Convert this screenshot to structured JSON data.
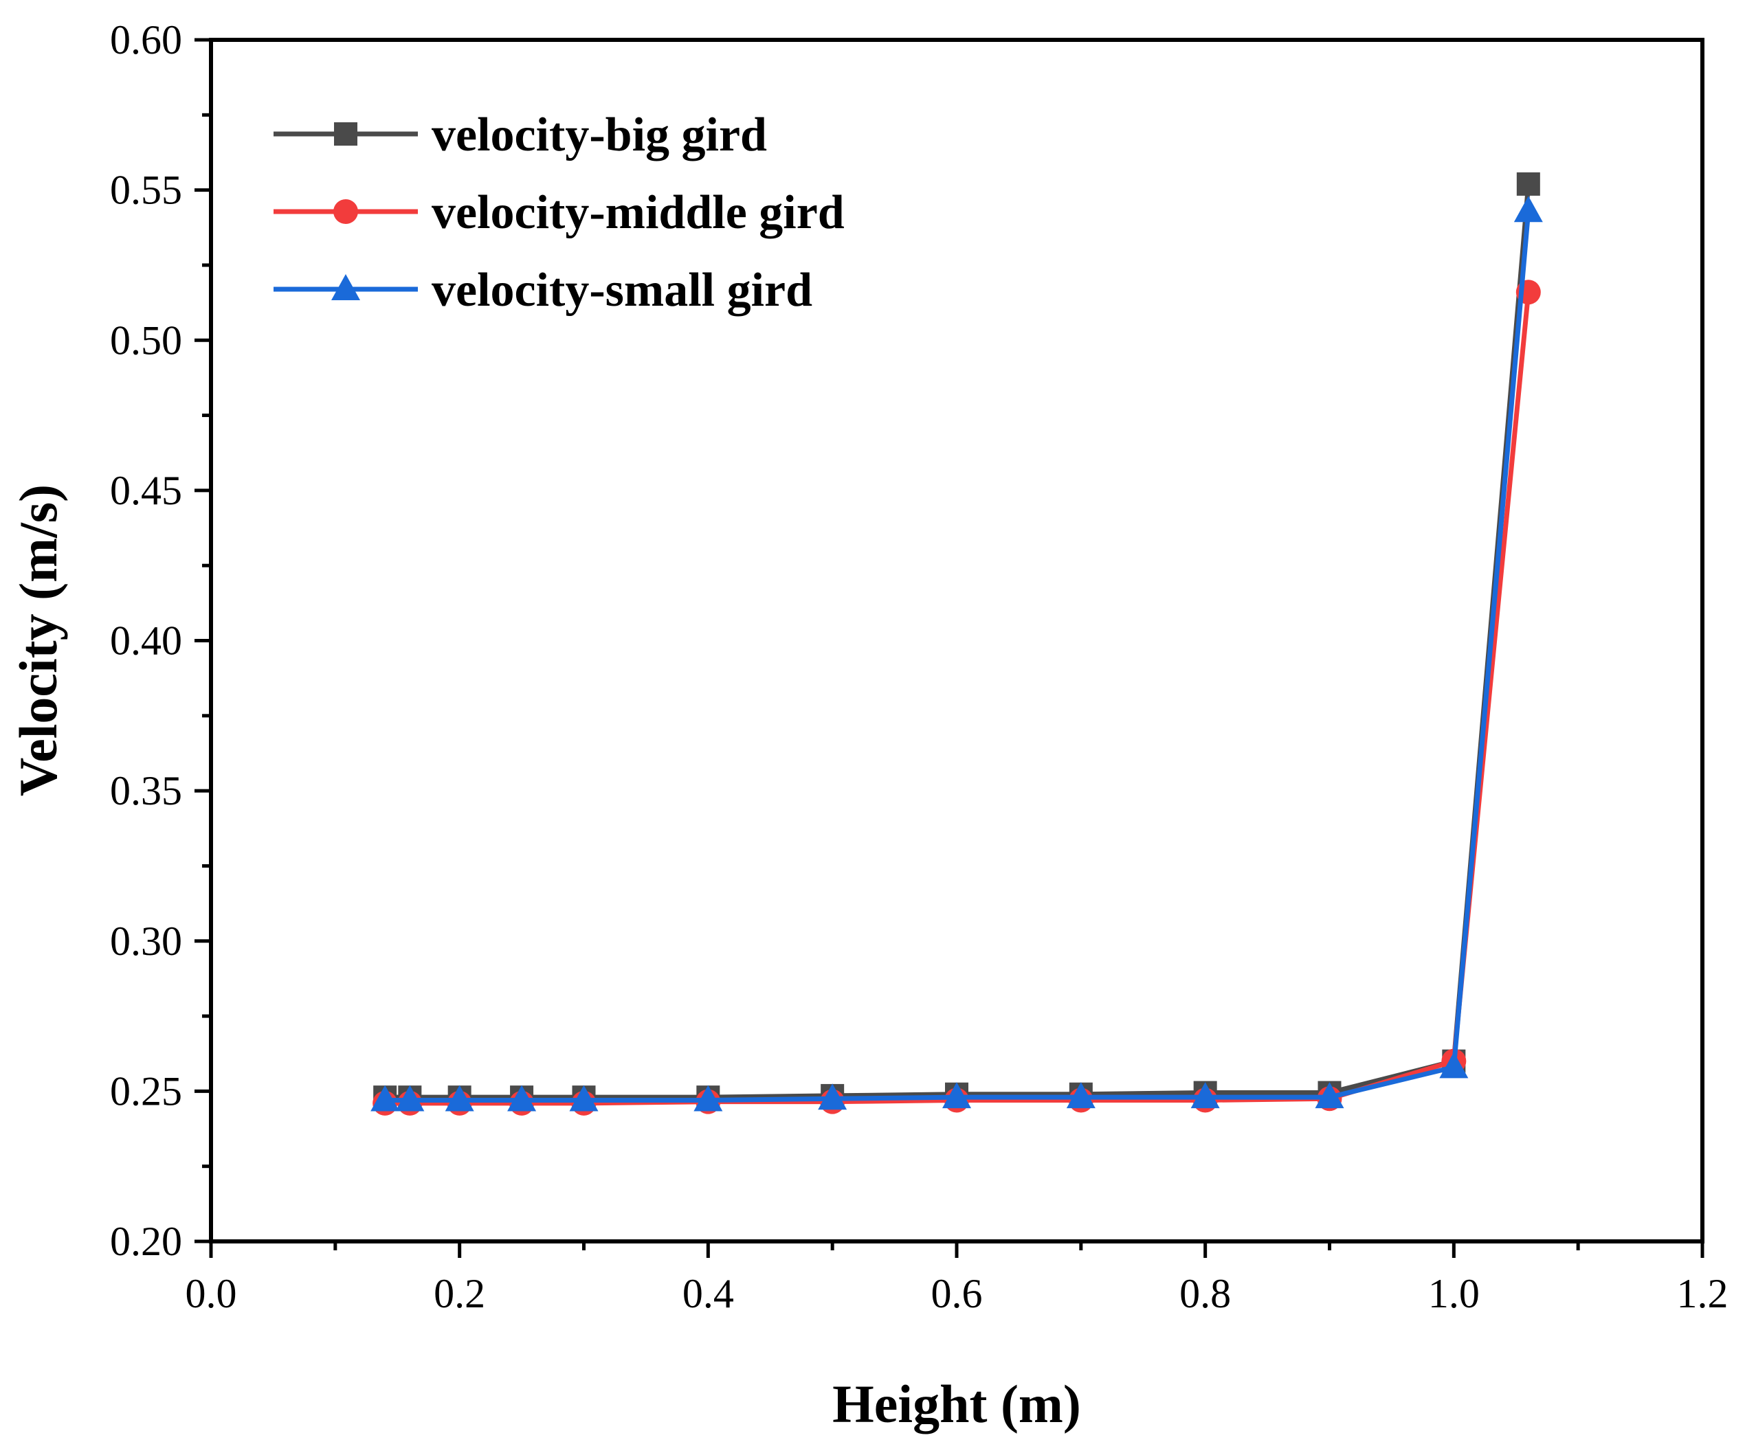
{
  "chart_data": {
    "type": "line",
    "title": "",
    "xlabel": "Height (m)",
    "ylabel": "Velocity (m/s)",
    "xlim": [
      0.0,
      1.2
    ],
    "ylim": [
      0.2,
      0.6
    ],
    "xticks": [
      0.0,
      0.2,
      0.4,
      0.6,
      0.8,
      1.0,
      1.2
    ],
    "xtick_labels": [
      "0.0",
      "0.2",
      "0.4",
      "0.6",
      "0.8",
      "1.0",
      "1.2"
    ],
    "yticks": [
      0.2,
      0.25,
      0.3,
      0.35,
      0.4,
      0.45,
      0.5,
      0.55,
      0.6
    ],
    "ytick_labels": [
      "0.20",
      "0.25",
      "0.30",
      "0.35",
      "0.40",
      "0.45",
      "0.50",
      "0.55",
      "0.60"
    ],
    "grid": false,
    "legend_position": "top-left",
    "x": [
      0.14,
      0.16,
      0.2,
      0.25,
      0.3,
      0.4,
      0.5,
      0.6,
      0.7,
      0.8,
      0.9,
      1.0,
      1.06
    ],
    "series": [
      {
        "name": "velocity-big gird",
        "color": "#4a4a4a",
        "marker": "square",
        "values": [
          0.248,
          0.248,
          0.248,
          0.248,
          0.248,
          0.248,
          0.2485,
          0.249,
          0.249,
          0.2495,
          0.2495,
          0.26,
          0.552
        ]
      },
      {
        "name": "velocity-middle gird",
        "color": "#f23c3c",
        "marker": "circle",
        "values": [
          0.246,
          0.246,
          0.246,
          0.246,
          0.246,
          0.2465,
          0.2465,
          0.247,
          0.247,
          0.247,
          0.2475,
          0.26,
          0.516
        ]
      },
      {
        "name": "velocity-small gird",
        "color": "#1a6ad9",
        "marker": "triangle",
        "values": [
          0.247,
          0.247,
          0.247,
          0.247,
          0.247,
          0.247,
          0.2475,
          0.248,
          0.248,
          0.248,
          0.248,
          0.258,
          0.543
        ]
      }
    ]
  }
}
